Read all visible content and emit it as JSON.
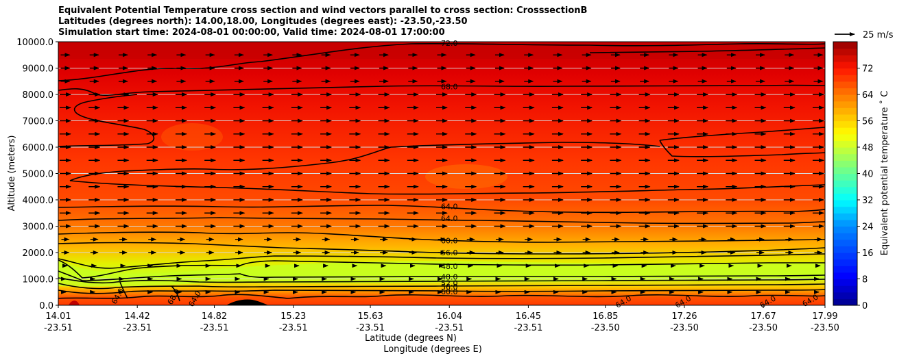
{
  "title": {
    "line1": "Equivalent Potential Temperature cross section and wind vectors parallel to cross section: CrosssectionB",
    "line2": "Latitudes (degrees north): 14.00,18.00, Longitudes (degrees east): -23.50,-23.50",
    "line3": "Simulation start time: 2024-08-01 00:00:00, Valid time: 2024-08-01 17:00:00"
  },
  "quiver_key": {
    "label": "25 m/s",
    "color": "#000000"
  },
  "chart_data": {
    "type": "filled contour cross section with wind vectors",
    "xlabel": "Latitude (degrees N)",
    "xlabel2": "Longitude (degrees E)",
    "ylabel": "Altitude (meters)",
    "colorbar_label": "Equivalent potential temperature ˚ C",
    "ylim": [
      0,
      10000
    ],
    "colorbar_range": [
      0,
      80
    ],
    "x_ticks": [
      {
        "lat": "14.01",
        "lon": "-23.51"
      },
      {
        "lat": "14.42",
        "lon": "-23.51"
      },
      {
        "lat": "14.82",
        "lon": "-23.51"
      },
      {
        "lat": "15.23",
        "lon": "-23.51"
      },
      {
        "lat": "15.63",
        "lon": "-23.51"
      },
      {
        "lat": "16.04",
        "lon": "-23.51"
      },
      {
        "lat": "16.45",
        "lon": "-23.51"
      },
      {
        "lat": "16.85",
        "lon": "-23.50"
      },
      {
        "lat": "17.26",
        "lon": "-23.50"
      },
      {
        "lat": "17.67",
        "lon": "-23.50"
      },
      {
        "lat": "17.99",
        "lon": "-23.50"
      }
    ],
    "y_ticks": [
      "0.0",
      "1000.0",
      "2000.0",
      "3000.0",
      "4000.0",
      "5000.0",
      "6000.0",
      "7000.0",
      "8000.0",
      "9000.0",
      "10000.0"
    ],
    "colorbar_ticks": [
      "0",
      "8",
      "16",
      "24",
      "32",
      "40",
      "48",
      "56",
      "64",
      "72"
    ],
    "contour_levels": [
      48,
      52,
      56,
      60,
      64,
      68,
      72
    ],
    "contour_labels": [
      {
        "text": "72.0",
        "x": 16.04,
        "y": 9950
      },
      {
        "text": "68.0",
        "x": 16.04,
        "y": 8300
      },
      {
        "text": "64.0",
        "x": 16.04,
        "y": 3750
      },
      {
        "text": "64.0",
        "x": 16.04,
        "y": 3300
      },
      {
        "text": "60.0",
        "x": 16.04,
        "y": 2450
      },
      {
        "text": "56.0",
        "x": 16.04,
        "y": 2000
      },
      {
        "text": "48.0",
        "x": 16.04,
        "y": 1480
      },
      {
        "text": "48.0",
        "x": 16.04,
        "y": 1080
      },
      {
        "text": "52.0",
        "x": 16.04,
        "y": 850
      },
      {
        "text": "56.0",
        "x": 16.04,
        "y": 700
      },
      {
        "text": "60.0",
        "x": 16.04,
        "y": 520
      },
      {
        "text": "64.0",
        "x": 14.33,
        "y": 400
      },
      {
        "text": "68.0",
        "x": 14.62,
        "y": 380
      },
      {
        "text": "64.0",
        "x": 14.73,
        "y": 300
      },
      {
        "text": "64.0",
        "x": 16.95,
        "y": 150
      },
      {
        "text": "64.0",
        "x": 17.26,
        "y": 150
      },
      {
        "text": "64.0",
        "x": 17.7,
        "y": 150
      },
      {
        "text": "64.0",
        "x": 17.92,
        "y": 200
      }
    ]
  }
}
